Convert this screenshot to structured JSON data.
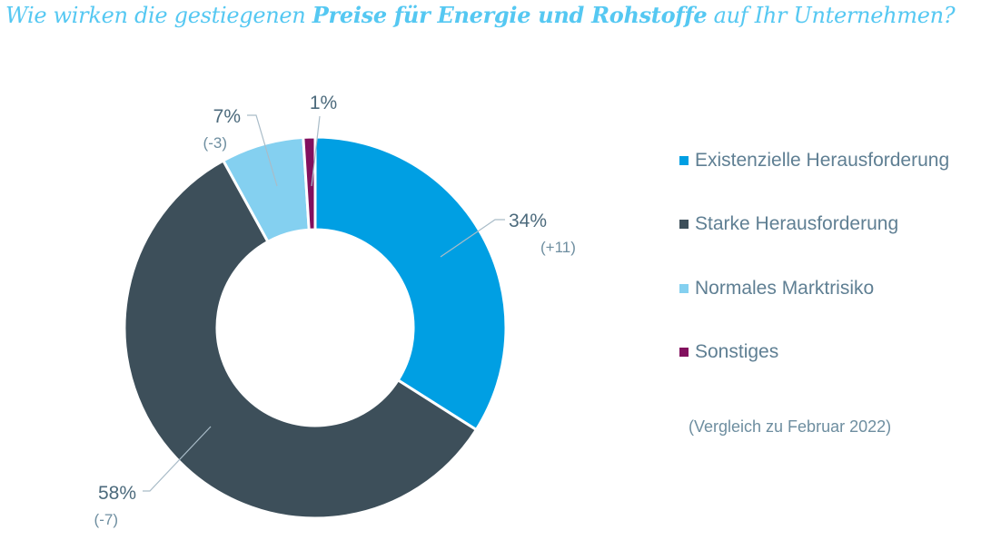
{
  "title": {
    "part1": "Wie wirken die gestiegenen ",
    "bold": "Preise für Energie und Rohstoffe",
    "part2": " auf Ihr Unternehmen?"
  },
  "chart_data": {
    "type": "pie",
    "variant": "donut",
    "title": "Wie wirken die gestiegenen Preise für Energie und Rohstoffe auf Ihr Unternehmen?",
    "categories": [
      "Existenzielle Herausforderung",
      "Starke Herausforderung",
      "Normales Marktrisiko",
      "Sonstiges"
    ],
    "values": [
      34,
      58,
      7,
      1
    ],
    "labels": [
      "34%",
      "58%",
      "7%",
      "1%"
    ],
    "deltas": [
      "(+11)",
      "(-7)",
      "(-3)",
      ""
    ],
    "colors": [
      "#009fe3",
      "#3d4f5a",
      "#84d0f0",
      "#82105e"
    ],
    "legend_position": "right",
    "note": "(Vergleich zu Februar 2022)"
  },
  "legend": {
    "items": [
      {
        "label": "Existenzielle Herausforderung",
        "color": "#009fe3"
      },
      {
        "label": "Starke Herausforderung",
        "color": "#3d4f5a"
      },
      {
        "label": "Normales Marktrisiko",
        "color": "#84d0f0"
      },
      {
        "label": "Sonstiges",
        "color": "#82105e"
      }
    ],
    "note": "(Vergleich zu Februar 2022)"
  }
}
